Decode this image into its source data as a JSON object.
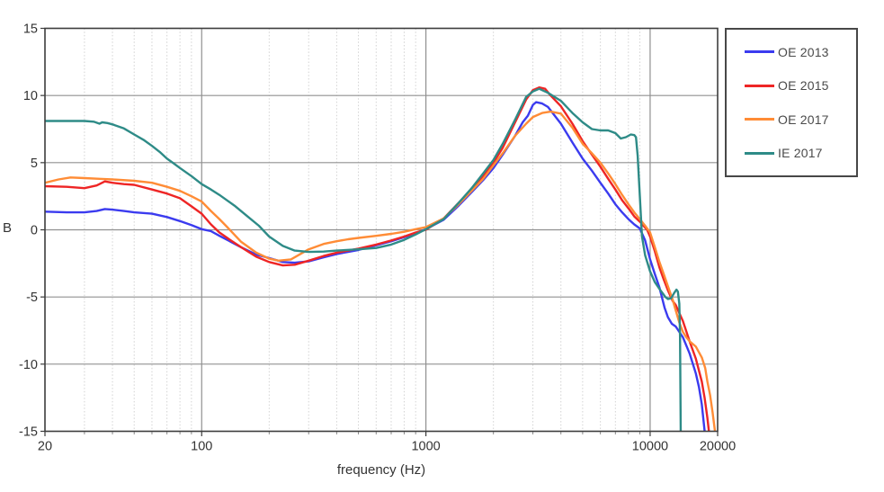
{
  "chart_data": {
    "type": "line",
    "title": "",
    "xlabel": "frequency (Hz)",
    "ylabel": "B",
    "x_scale": "log",
    "xlim": [
      20,
      20000
    ],
    "ylim": [
      -15,
      15
    ],
    "grid": true,
    "background": "#ffffff",
    "text_color": "#333333",
    "border_color": "#3d3d3d",
    "major_grid_color": "#909090",
    "minor_grid_color": "#d2d2d2",
    "y_tick_values": [
      15,
      10,
      5,
      0,
      -5,
      -10,
      -15
    ],
    "y_tick_labels": [
      "15",
      "10",
      "5",
      "0",
      "-5",
      "-10",
      "-15"
    ],
    "x_major_tick_values": [
      20,
      100,
      1000,
      10000,
      20000
    ],
    "x_major_tick_labels": [
      "20",
      "100",
      "1000",
      "10000",
      "20000"
    ],
    "x_minor_tick_values": [
      30,
      40,
      50,
      60,
      70,
      80,
      90,
      200,
      300,
      400,
      500,
      600,
      700,
      800,
      900,
      2000,
      3000,
      4000,
      5000,
      6000,
      7000,
      8000,
      9000
    ],
    "legend_position": "outside-top-right",
    "series": [
      {
        "name": "OE 2013",
        "color": "#3b3bef",
        "points": [
          [
            20,
            1.35
          ],
          [
            25,
            1.3
          ],
          [
            30,
            1.3
          ],
          [
            34,
            1.4
          ],
          [
            37,
            1.55
          ],
          [
            40,
            1.5
          ],
          [
            45,
            1.4
          ],
          [
            50,
            1.3
          ],
          [
            60,
            1.2
          ],
          [
            70,
            0.95
          ],
          [
            80,
            0.65
          ],
          [
            90,
            0.35
          ],
          [
            100,
            0.05
          ],
          [
            110,
            -0.1
          ],
          [
            120,
            -0.45
          ],
          [
            135,
            -0.9
          ],
          [
            150,
            -1.3
          ],
          [
            175,
            -1.85
          ],
          [
            200,
            -2.1
          ],
          [
            230,
            -2.4
          ],
          [
            260,
            -2.45
          ],
          [
            300,
            -2.35
          ],
          [
            350,
            -2.05
          ],
          [
            400,
            -1.8
          ],
          [
            450,
            -1.65
          ],
          [
            500,
            -1.5
          ],
          [
            600,
            -1.15
          ],
          [
            700,
            -0.85
          ],
          [
            800,
            -0.55
          ],
          [
            900,
            -0.25
          ],
          [
            1000,
            0.05
          ],
          [
            1200,
            0.75
          ],
          [
            1400,
            1.8
          ],
          [
            1600,
            2.8
          ],
          [
            1800,
            3.7
          ],
          [
            2000,
            4.6
          ],
          [
            2200,
            5.6
          ],
          [
            2500,
            7.0
          ],
          [
            2700,
            8.0
          ],
          [
            2850,
            8.5
          ],
          [
            3000,
            9.3
          ],
          [
            3100,
            9.5
          ],
          [
            3300,
            9.4
          ],
          [
            3500,
            9.15
          ],
          [
            4000,
            7.9
          ],
          [
            4500,
            6.5
          ],
          [
            5000,
            5.3
          ],
          [
            5500,
            4.4
          ],
          [
            6000,
            3.5
          ],
          [
            6500,
            2.7
          ],
          [
            7000,
            1.9
          ],
          [
            7500,
            1.3
          ],
          [
            8000,
            0.8
          ],
          [
            8500,
            0.4
          ],
          [
            9000,
            0.1
          ],
          [
            9500,
            -0.8
          ],
          [
            10000,
            -2.2
          ],
          [
            10500,
            -3.3
          ],
          [
            11000,
            -4.3
          ],
          [
            11600,
            -5.8
          ],
          [
            12000,
            -6.5
          ],
          [
            12500,
            -7.0
          ],
          [
            13000,
            -7.2
          ],
          [
            13500,
            -7.6
          ],
          [
            14000,
            -8.0
          ],
          [
            15000,
            -9.2
          ],
          [
            16000,
            -10.7
          ],
          [
            16500,
            -11.7
          ],
          [
            17000,
            -13.0
          ],
          [
            17600,
            -15.4
          ]
        ]
      },
      {
        "name": "OE 2015",
        "color": "#ee2525",
        "points": [
          [
            20,
            3.25
          ],
          [
            25,
            3.2
          ],
          [
            30,
            3.1
          ],
          [
            34,
            3.3
          ],
          [
            37,
            3.6
          ],
          [
            40,
            3.5
          ],
          [
            45,
            3.4
          ],
          [
            50,
            3.35
          ],
          [
            60,
            3.0
          ],
          [
            70,
            2.7
          ],
          [
            80,
            2.35
          ],
          [
            90,
            1.75
          ],
          [
            100,
            1.2
          ],
          [
            110,
            0.4
          ],
          [
            120,
            -0.2
          ],
          [
            135,
            -0.8
          ],
          [
            150,
            -1.3
          ],
          [
            175,
            -2.0
          ],
          [
            200,
            -2.4
          ],
          [
            230,
            -2.65
          ],
          [
            260,
            -2.6
          ],
          [
            300,
            -2.3
          ],
          [
            350,
            -1.95
          ],
          [
            400,
            -1.7
          ],
          [
            450,
            -1.55
          ],
          [
            500,
            -1.4
          ],
          [
            600,
            -1.1
          ],
          [
            700,
            -0.8
          ],
          [
            800,
            -0.5
          ],
          [
            900,
            -0.2
          ],
          [
            1000,
            0.0
          ],
          [
            1200,
            0.85
          ],
          [
            1400,
            2.0
          ],
          [
            1600,
            3.0
          ],
          [
            1800,
            4.0
          ],
          [
            2000,
            5.0
          ],
          [
            2200,
            6.1
          ],
          [
            2500,
            8.0
          ],
          [
            2800,
            9.7
          ],
          [
            3000,
            10.4
          ],
          [
            3200,
            10.6
          ],
          [
            3400,
            10.5
          ],
          [
            3600,
            10.0
          ],
          [
            4000,
            9.2
          ],
          [
            4500,
            7.9
          ],
          [
            5000,
            6.6
          ],
          [
            5500,
            5.6
          ],
          [
            6000,
            4.7
          ],
          [
            6500,
            3.8
          ],
          [
            7000,
            3.0
          ],
          [
            7500,
            2.2
          ],
          [
            8000,
            1.6
          ],
          [
            8500,
            1.0
          ],
          [
            9000,
            0.6
          ],
          [
            9700,
            0.0
          ],
          [
            10000,
            -0.5
          ],
          [
            10500,
            -1.6
          ],
          [
            11000,
            -2.8
          ],
          [
            11500,
            -3.7
          ],
          [
            12000,
            -4.5
          ],
          [
            12600,
            -5.3
          ],
          [
            13000,
            -5.6
          ],
          [
            13500,
            -6.2
          ],
          [
            14000,
            -6.8
          ],
          [
            15000,
            -8.3
          ],
          [
            16000,
            -9.6
          ],
          [
            17000,
            -11.3
          ],
          [
            17500,
            -12.5
          ],
          [
            18000,
            -14.0
          ],
          [
            18400,
            -15.4
          ]
        ]
      },
      {
        "name": "OE 2017",
        "color": "#ff8c36",
        "points": [
          [
            20,
            3.5
          ],
          [
            23,
            3.75
          ],
          [
            26,
            3.9
          ],
          [
            30,
            3.85
          ],
          [
            35,
            3.8
          ],
          [
            40,
            3.75
          ],
          [
            50,
            3.65
          ],
          [
            60,
            3.5
          ],
          [
            70,
            3.2
          ],
          [
            80,
            2.9
          ],
          [
            90,
            2.5
          ],
          [
            100,
            2.1
          ],
          [
            110,
            1.4
          ],
          [
            120,
            0.8
          ],
          [
            130,
            0.2
          ],
          [
            150,
            -0.9
          ],
          [
            175,
            -1.7
          ],
          [
            200,
            -2.15
          ],
          [
            220,
            -2.3
          ],
          [
            250,
            -2.2
          ],
          [
            300,
            -1.45
          ],
          [
            350,
            -1.05
          ],
          [
            400,
            -0.85
          ],
          [
            450,
            -0.7
          ],
          [
            500,
            -0.6
          ],
          [
            600,
            -0.45
          ],
          [
            700,
            -0.3
          ],
          [
            800,
            -0.15
          ],
          [
            900,
            0.05
          ],
          [
            1000,
            0.2
          ],
          [
            1200,
            0.85
          ],
          [
            1400,
            1.9
          ],
          [
            1600,
            2.9
          ],
          [
            1800,
            3.8
          ],
          [
            2000,
            4.8
          ],
          [
            2200,
            5.7
          ],
          [
            2500,
            7.0
          ],
          [
            2800,
            7.9
          ],
          [
            3000,
            8.4
          ],
          [
            3300,
            8.7
          ],
          [
            3600,
            8.8
          ],
          [
            4000,
            8.65
          ],
          [
            4500,
            7.6
          ],
          [
            5000,
            6.4
          ],
          [
            5500,
            5.7
          ],
          [
            6000,
            5.0
          ],
          [
            6500,
            4.2
          ],
          [
            7000,
            3.4
          ],
          [
            7500,
            2.6
          ],
          [
            8000,
            1.9
          ],
          [
            8500,
            1.3
          ],
          [
            9000,
            0.8
          ],
          [
            9500,
            0.3
          ],
          [
            10000,
            -0.2
          ],
          [
            10500,
            -1.3
          ],
          [
            11000,
            -2.4
          ],
          [
            11500,
            -3.3
          ],
          [
            12000,
            -4.2
          ],
          [
            12600,
            -5.2
          ],
          [
            13000,
            -6.0
          ],
          [
            13500,
            -6.9
          ],
          [
            14000,
            -7.6
          ],
          [
            14500,
            -8.0
          ],
          [
            15000,
            -8.3
          ],
          [
            16000,
            -8.7
          ],
          [
            17000,
            -9.5
          ],
          [
            17600,
            -10.3
          ],
          [
            18000,
            -11.3
          ],
          [
            18500,
            -12.3
          ],
          [
            19000,
            -13.6
          ],
          [
            19600,
            -15.4
          ]
        ]
      },
      {
        "name": "IE 2017",
        "color": "#2e8b87",
        "points": [
          [
            20,
            8.1
          ],
          [
            25,
            8.1
          ],
          [
            30,
            8.1
          ],
          [
            33,
            8.05
          ],
          [
            35,
            7.9
          ],
          [
            36,
            8.0
          ],
          [
            38,
            7.95
          ],
          [
            40,
            7.85
          ],
          [
            45,
            7.55
          ],
          [
            50,
            7.1
          ],
          [
            55,
            6.7
          ],
          [
            60,
            6.25
          ],
          [
            65,
            5.8
          ],
          [
            70,
            5.3
          ],
          [
            75,
            4.95
          ],
          [
            80,
            4.6
          ],
          [
            90,
            4.0
          ],
          [
            100,
            3.4
          ],
          [
            110,
            3.0
          ],
          [
            120,
            2.6
          ],
          [
            140,
            1.8
          ],
          [
            160,
            1.0
          ],
          [
            180,
            0.3
          ],
          [
            200,
            -0.5
          ],
          [
            230,
            -1.2
          ],
          [
            260,
            -1.55
          ],
          [
            300,
            -1.65
          ],
          [
            350,
            -1.62
          ],
          [
            400,
            -1.55
          ],
          [
            500,
            -1.45
          ],
          [
            600,
            -1.35
          ],
          [
            700,
            -1.1
          ],
          [
            800,
            -0.75
          ],
          [
            900,
            -0.35
          ],
          [
            1000,
            0.05
          ],
          [
            1200,
            0.8
          ],
          [
            1400,
            2.0
          ],
          [
            1600,
            3.1
          ],
          [
            1800,
            4.2
          ],
          [
            2000,
            5.2
          ],
          [
            2200,
            6.4
          ],
          [
            2500,
            8.2
          ],
          [
            2800,
            9.9
          ],
          [
            3000,
            10.3
          ],
          [
            3200,
            10.5
          ],
          [
            3500,
            10.2
          ],
          [
            4000,
            9.6
          ],
          [
            4500,
            8.7
          ],
          [
            5000,
            8.0
          ],
          [
            5500,
            7.5
          ],
          [
            6000,
            7.4
          ],
          [
            6500,
            7.4
          ],
          [
            7000,
            7.2
          ],
          [
            7400,
            6.8
          ],
          [
            7800,
            6.9
          ],
          [
            8200,
            7.1
          ],
          [
            8500,
            7.05
          ],
          [
            8650,
            6.9
          ],
          [
            8800,
            5.5
          ],
          [
            9000,
            2.5
          ],
          [
            9200,
            -0.5
          ],
          [
            9500,
            -1.9
          ],
          [
            10000,
            -3.1
          ],
          [
            10500,
            -3.9
          ],
          [
            11000,
            -4.4
          ],
          [
            11700,
            -5.0
          ],
          [
            12000,
            -5.15
          ],
          [
            12400,
            -5.1
          ],
          [
            12800,
            -4.7
          ],
          [
            13100,
            -4.45
          ],
          [
            13300,
            -4.6
          ],
          [
            13500,
            -5.5
          ],
          [
            13600,
            -8.0
          ],
          [
            13700,
            -15.4
          ]
        ]
      }
    ]
  }
}
